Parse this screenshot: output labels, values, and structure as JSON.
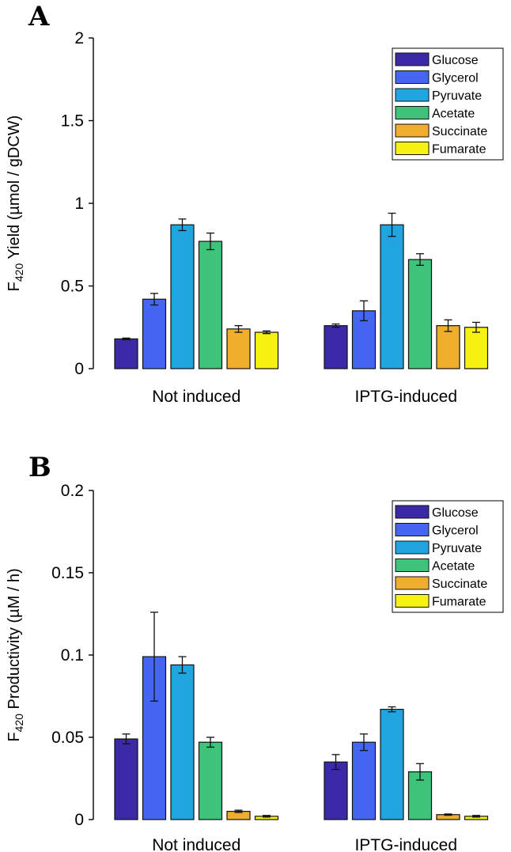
{
  "chart_data": [
    {
      "type": "bar",
      "panel_label": "A",
      "ylabel_prefix": "F",
      "ylabel_subscript": "420",
      "ylabel_suffix": " Yield (µmol / gDCW)",
      "ylim": [
        0,
        2
      ],
      "yticks": [
        0,
        0.5,
        1,
        1.5,
        2
      ],
      "ytick_labels": [
        "0",
        "0.5",
        "1",
        "1.5",
        "2"
      ],
      "categories": [
        "Not induced",
        "IPTG-induced"
      ],
      "legend_position": "top-right",
      "series": [
        {
          "name": "Glucose",
          "color": "#3a2aa8",
          "values": [
            0.18,
            0.26
          ],
          "errors": [
            0.005,
            0.01
          ]
        },
        {
          "name": "Glycerol",
          "color": "#4466f0",
          "values": [
            0.42,
            0.35
          ],
          "errors": [
            0.035,
            0.06
          ]
        },
        {
          "name": "Pyruvate",
          "color": "#1fa5df",
          "values": [
            0.87,
            0.87
          ],
          "errors": [
            0.035,
            0.07
          ]
        },
        {
          "name": "Acetate",
          "color": "#3ec47a",
          "values": [
            0.77,
            0.66
          ],
          "errors": [
            0.05,
            0.035
          ]
        },
        {
          "name": "Succinate",
          "color": "#f0ae2e",
          "values": [
            0.24,
            0.26
          ],
          "errors": [
            0.02,
            0.035
          ]
        },
        {
          "name": "Fumarate",
          "color": "#f6f212",
          "values": [
            0.22,
            0.25
          ],
          "errors": [
            0.008,
            0.03
          ]
        }
      ]
    },
    {
      "type": "bar",
      "panel_label": "B",
      "ylabel_prefix": "F",
      "ylabel_subscript": "420",
      "ylabel_suffix": " Productivity (µM / h)",
      "ylim": [
        0,
        0.2
      ],
      "yticks": [
        0,
        0.05,
        0.1,
        0.15,
        0.2
      ],
      "ytick_labels": [
        "0",
        "0.05",
        "0.1",
        "0.15",
        "0.2"
      ],
      "categories": [
        "Not induced",
        "IPTG-induced"
      ],
      "legend_position": "top-right",
      "series": [
        {
          "name": "Glucose",
          "color": "#3a2aa8",
          "values": [
            0.049,
            0.035
          ],
          "errors": [
            0.003,
            0.0045
          ]
        },
        {
          "name": "Glycerol",
          "color": "#4466f0",
          "values": [
            0.099,
            0.047
          ],
          "errors": [
            0.027,
            0.005
          ]
        },
        {
          "name": "Pyruvate",
          "color": "#1fa5df",
          "values": [
            0.094,
            0.067
          ],
          "errors": [
            0.005,
            0.0015
          ]
        },
        {
          "name": "Acetate",
          "color": "#3ec47a",
          "values": [
            0.047,
            0.029
          ],
          "errors": [
            0.003,
            0.005
          ]
        },
        {
          "name": "Succinate",
          "color": "#f0ae2e",
          "values": [
            0.005,
            0.003
          ],
          "errors": [
            0.0007,
            0.0004
          ]
        },
        {
          "name": "Fumarate",
          "color": "#f6f212",
          "values": [
            0.002,
            0.002
          ],
          "errors": [
            0.0005,
            0.0005
          ]
        }
      ]
    }
  ]
}
